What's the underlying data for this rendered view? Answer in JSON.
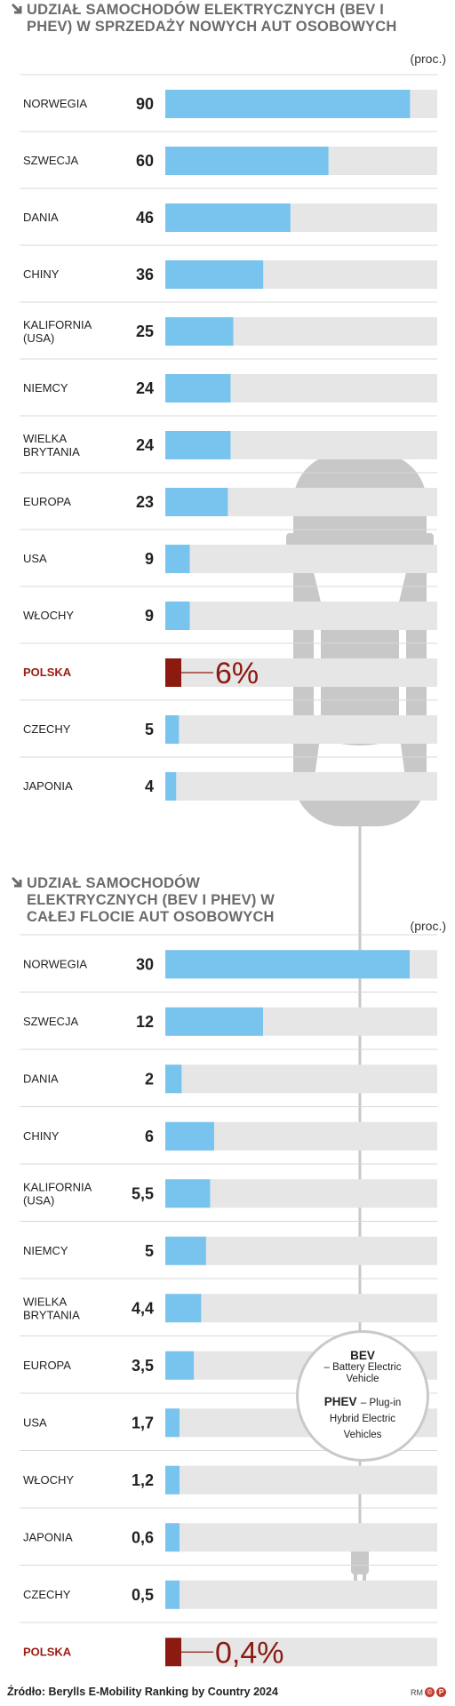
{
  "colors": {
    "bar": "#78c4ee",
    "track": "#e6e6e6",
    "highlight": "#8b1a10",
    "label": "#222222",
    "highlight_label": "#9b1b12",
    "car": "#c8c8c8"
  },
  "chart_data": [
    {
      "type": "bar",
      "title": "UDZIAŁ SAMOCHODÓW ELEKTRYCZNYCH (BEV I PHEV) W SPRZEDAŻY NOWYCH AUT OSOBOWYCH",
      "unit": "(proc.)",
      "categories": [
        "NORWEGIA",
        "SZWECJA",
        "DANIA",
        "CHINY",
        "KALIFORNIA (USA)",
        "NIEMCY",
        "WIELKA BRYTANIA",
        "EUROPA",
        "USA",
        "WŁOCHY",
        "POLSKA",
        "CZECHY",
        "JAPONIA"
      ],
      "values": [
        90,
        60,
        46,
        36,
        25,
        24,
        24,
        23,
        9,
        9,
        6,
        5,
        4
      ],
      "value_labels": [
        "90",
        "60",
        "46",
        "36",
        "25",
        "24",
        "24",
        "23",
        "9",
        "9",
        "6%",
        "5",
        "4"
      ],
      "highlight": "POLSKA",
      "xlim": [
        0,
        100
      ]
    },
    {
      "type": "bar",
      "title": "UDZIAŁ SAMOCHODÓW ELEKTRYCZNYCH (BEV I PHEV) W CAŁEJ FLOCIE AUT OSOBOWYCH",
      "unit": "(proc.)",
      "categories": [
        "NORWEGIA",
        "SZWECJA",
        "DANIA",
        "CHINY",
        "KALIFORNIA (USA)",
        "NIEMCY",
        "WIELKA BRYTANIA",
        "EUROPA",
        "USA",
        "WŁOCHY",
        "JAPONIA",
        "CZECHY",
        "POLSKA"
      ],
      "values": [
        30,
        12,
        2,
        6,
        5.5,
        5,
        4.4,
        3.5,
        1.7,
        1.2,
        0.6,
        0.5,
        0.4
      ],
      "value_labels": [
        "30",
        "12",
        "2",
        "6",
        "5,5",
        "5",
        "4,4",
        "3,5",
        "1,7",
        "1,2",
        "0,6",
        "0,5",
        "0,4%"
      ],
      "highlight": "POLSKA"
    }
  ],
  "legend": {
    "bev_abbr": "BEV",
    "bev_desc": "– Battery Electric Vehicle",
    "phev_abbr": "PHEV",
    "phev_desc": "– Plug-in Hybrid Electric Vehicles"
  },
  "source": "Źródło: Berylls E-Mobility Ranking by Country 2024",
  "logo": "RM"
}
